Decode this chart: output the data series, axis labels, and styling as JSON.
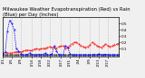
{
  "title": "Milwaukee Weather Evapotranspiration (Red) vs Rain (Blue) per Day (Inches)",
  "background_color": "#f0f0f0",
  "grid_color": "#999999",
  "ylim": [
    -0.02,
    0.6
  ],
  "xlim": [
    0,
    52
  ],
  "blue_data": [
    0.02,
    0.04,
    0.38,
    0.55,
    0.5,
    0.4,
    0.1,
    0.06,
    0.02,
    0.0,
    0.0,
    0.01,
    0.03,
    0.01,
    0.0,
    0.0,
    0.01,
    0.0,
    0.01,
    0.03,
    0.0,
    0.0,
    0.02,
    0.14,
    0.06,
    0.01,
    0.0,
    0.0,
    0.15,
    0.12,
    0.02,
    0.0,
    0.0,
    0.0,
    0.0,
    0.0,
    0.0,
    0.0,
    0.0,
    0.0,
    0.0,
    0.01,
    0.0,
    0.02,
    0.0,
    0.0,
    0.01,
    0.0,
    0.0,
    0.0,
    0.0,
    0.0,
    0.0
  ],
  "red_data": [
    0.03,
    0.04,
    0.03,
    0.03,
    0.03,
    0.04,
    0.05,
    0.05,
    0.05,
    0.06,
    0.07,
    0.08,
    0.07,
    0.07,
    0.09,
    0.1,
    0.09,
    0.1,
    0.1,
    0.11,
    0.12,
    0.13,
    0.12,
    0.12,
    0.11,
    0.13,
    0.14,
    0.14,
    0.11,
    0.12,
    0.15,
    0.18,
    0.2,
    0.2,
    0.17,
    0.15,
    0.13,
    0.12,
    0.13,
    0.16,
    0.2,
    0.18,
    0.15,
    0.13,
    0.12,
    0.14,
    0.17,
    0.15,
    0.13,
    0.14,
    0.16,
    0.17,
    0.18
  ],
  "black_data": [
    0.01,
    0.01,
    0.01,
    0.01,
    0.01,
    0.01,
    0.01,
    0.01,
    0.01,
    0.01,
    0.01,
    0.01,
    0.01,
    0.01,
    0.01,
    0.01,
    0.01,
    0.01,
    0.01,
    0.01,
    0.01,
    0.01,
    0.01,
    0.01,
    0.01,
    0.01,
    0.01,
    0.01,
    0.01,
    0.01,
    0.01,
    0.01,
    0.01,
    0.01,
    0.01,
    0.01,
    0.01,
    0.01,
    0.01,
    0.01,
    0.01,
    0.01,
    0.01,
    0.01,
    0.01,
    0.01,
    0.01,
    0.01,
    0.01,
    0.01,
    0.01,
    0.01,
    0.01
  ],
  "x_tick_positions": [
    0,
    4,
    8,
    13,
    17,
    21,
    26,
    30,
    34,
    39,
    43,
    47
  ],
  "x_tick_labels": [
    "1/1",
    "1/5",
    "1/9",
    "1/14",
    "1/18",
    "1/22",
    "1/27",
    "1/31",
    "2/4",
    "2/9",
    "2/13",
    "2/17"
  ],
  "y_tick_values": [
    0.1,
    0.2,
    0.3,
    0.4,
    0.5
  ],
  "y_tick_labels": [
    "0.1",
    "0.2",
    "0.3",
    "0.4",
    "0.5"
  ],
  "title_fontsize": 3.8,
  "tick_fontsize": 3.0,
  "line_width": 0.5,
  "marker_size": 0.8,
  "dash_pattern": [
    2,
    1
  ]
}
